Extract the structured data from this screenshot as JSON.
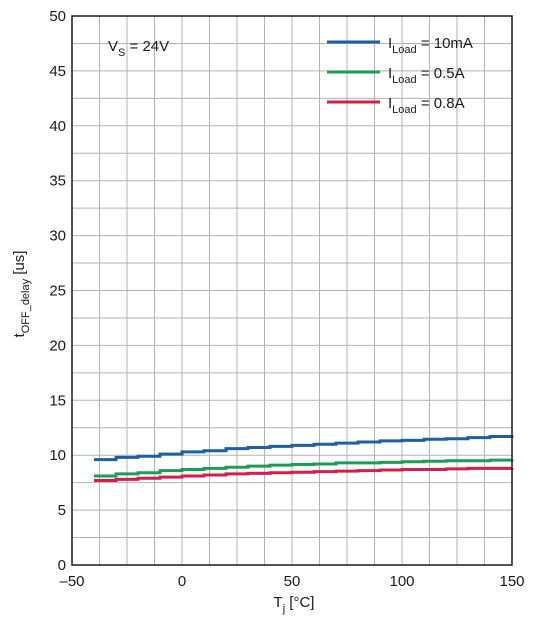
{
  "chart_data": {
    "type": "line",
    "annotation": {
      "main": "V",
      "sub": "S",
      "rest": " = 24V"
    },
    "xlabel": {
      "main": "T",
      "sub": "j",
      "rest": " [°C]"
    },
    "ylabel": {
      "main": "t",
      "sub": "OFF_delay",
      "rest": " [us]"
    },
    "xlim": [
      -50,
      150
    ],
    "ylim": [
      0,
      50
    ],
    "xticks": [
      -50,
      0,
      50,
      100,
      150
    ],
    "xtick_labels": [
      "–50",
      "0",
      "50",
      "100",
      "150"
    ],
    "yticks": [
      0,
      5,
      10,
      15,
      20,
      25,
      30,
      35,
      40,
      45,
      50
    ],
    "ytick_labels": [
      "0",
      "5",
      "10",
      "15",
      "20",
      "25",
      "30",
      "35",
      "40",
      "45",
      "50"
    ],
    "grid": true,
    "grid_x_step": 12.5,
    "grid_y_step": 2.5,
    "legend_position": "top-right",
    "series": [
      {
        "name": "I Load = 10mA",
        "legend": {
          "main": "I",
          "sub": "Load",
          "rest": " = 10mA"
        },
        "color": "#1f5fa0",
        "x": [
          -40,
          -30,
          -20,
          -10,
          0,
          10,
          20,
          30,
          40,
          50,
          60,
          70,
          80,
          90,
          100,
          110,
          120,
          130,
          140,
          150
        ],
        "y": [
          9.6,
          9.8,
          9.9,
          10.1,
          10.3,
          10.4,
          10.6,
          10.7,
          10.8,
          10.9,
          11.0,
          11.1,
          11.2,
          11.3,
          11.35,
          11.45,
          11.5,
          11.6,
          11.7,
          11.8
        ]
      },
      {
        "name": "I Load = 0.5A",
        "legend": {
          "main": "I",
          "sub": "Load",
          "rest": " = 0.5A"
        },
        "color": "#1e9b55",
        "x": [
          -40,
          -30,
          -20,
          -10,
          0,
          10,
          20,
          30,
          40,
          50,
          60,
          70,
          80,
          90,
          100,
          110,
          120,
          130,
          140,
          150
        ],
        "y": [
          8.1,
          8.3,
          8.4,
          8.6,
          8.7,
          8.8,
          8.9,
          9.0,
          9.1,
          9.15,
          9.2,
          9.3,
          9.3,
          9.35,
          9.4,
          9.45,
          9.5,
          9.5,
          9.55,
          9.6
        ]
      },
      {
        "name": "I Load = 0.8A",
        "legend": {
          "main": "I",
          "sub": "Load",
          "rest": " = 0.8A"
        },
        "color": "#d21f4b",
        "x": [
          -40,
          -30,
          -20,
          -10,
          0,
          10,
          20,
          30,
          40,
          50,
          60,
          70,
          80,
          90,
          100,
          110,
          120,
          130,
          140,
          150
        ],
        "y": [
          7.7,
          7.8,
          7.9,
          8.0,
          8.1,
          8.2,
          8.3,
          8.35,
          8.4,
          8.45,
          8.5,
          8.55,
          8.6,
          8.65,
          8.7,
          8.7,
          8.75,
          8.8,
          8.8,
          8.85
        ]
      }
    ]
  }
}
